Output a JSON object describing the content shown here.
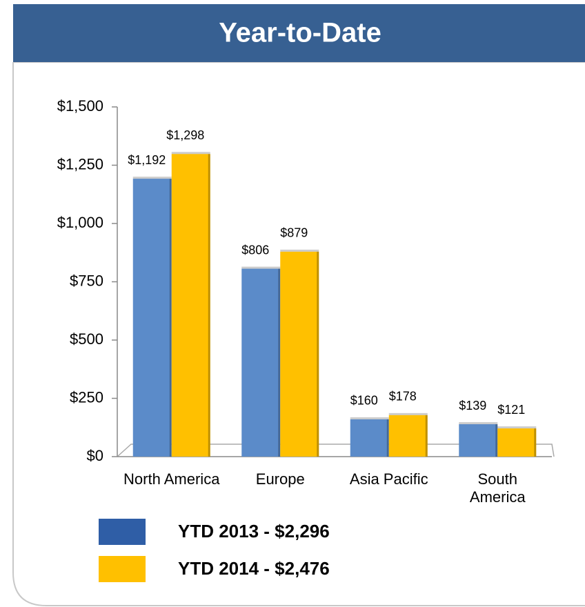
{
  "chart_data": {
    "type": "bar",
    "title": "Year-to-Date",
    "categories": [
      "North America",
      "Europe",
      "Asia Pacific",
      "South America"
    ],
    "series": [
      {
        "name": "YTD 2013 - $2,296",
        "color": "#5b8bc9",
        "values": [
          1192,
          806,
          160,
          139
        ],
        "value_labels": [
          "$1,192",
          "$806",
          "$160",
          "$139"
        ]
      },
      {
        "name": "YTD 2014 - $2,476",
        "color": "#ffc000",
        "values": [
          1298,
          879,
          178,
          121
        ],
        "value_labels": [
          "$1,298",
          "$879",
          "$178",
          "$121"
        ]
      }
    ],
    "ylim": [
      0,
      1500
    ],
    "yticks": [
      {
        "value": 0,
        "label": "$0"
      },
      {
        "value": 250,
        "label": "$250"
      },
      {
        "value": 500,
        "label": "$500"
      },
      {
        "value": 750,
        "label": "$750"
      },
      {
        "value": 1000,
        "label": "$1,000"
      },
      {
        "value": 1250,
        "label": "$1,250"
      },
      {
        "value": 1500,
        "label": "$1,500"
      }
    ],
    "grid": false,
    "legend": "bottom"
  }
}
